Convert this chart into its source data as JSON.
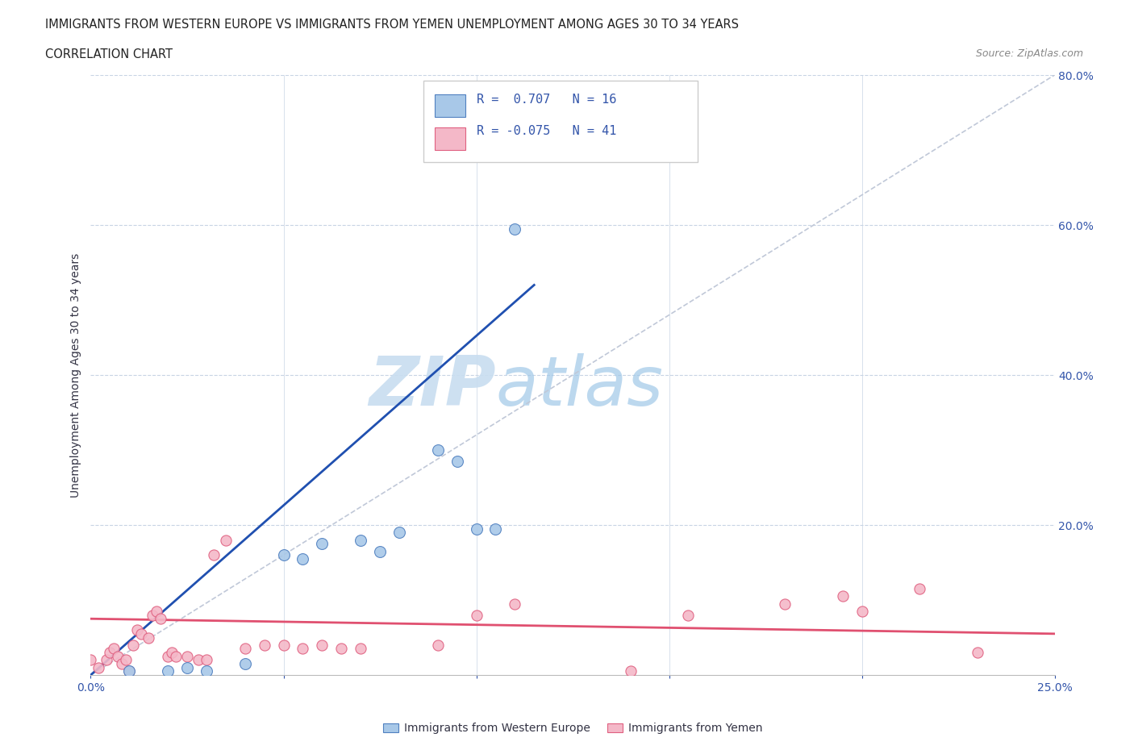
{
  "title_line1": "IMMIGRANTS FROM WESTERN EUROPE VS IMMIGRANTS FROM YEMEN UNEMPLOYMENT AMONG AGES 30 TO 34 YEARS",
  "title_line2": "CORRELATION CHART",
  "source": "Source: ZipAtlas.com",
  "ylabel": "Unemployment Among Ages 30 to 34 years",
  "xlim": [
    0.0,
    0.25
  ],
  "ylim": [
    0.0,
    0.8
  ],
  "xticks": [
    0.0,
    0.05,
    0.1,
    0.15,
    0.2,
    0.25
  ],
  "xtick_labels": [
    "0.0%",
    "",
    "",
    "",
    "",
    "25.0%"
  ],
  "yticks_right": [
    0.0,
    0.2,
    0.4,
    0.6,
    0.8
  ],
  "blue_scatter_x": [
    0.01,
    0.02,
    0.025,
    0.03,
    0.04,
    0.05,
    0.055,
    0.06,
    0.07,
    0.075,
    0.08,
    0.09,
    0.095,
    0.1,
    0.105,
    0.11
  ],
  "blue_scatter_y": [
    0.005,
    0.005,
    0.01,
    0.005,
    0.015,
    0.16,
    0.155,
    0.175,
    0.18,
    0.165,
    0.19,
    0.3,
    0.285,
    0.195,
    0.195,
    0.595
  ],
  "pink_scatter_x": [
    0.0,
    0.002,
    0.004,
    0.005,
    0.006,
    0.007,
    0.008,
    0.009,
    0.01,
    0.011,
    0.012,
    0.013,
    0.015,
    0.016,
    0.017,
    0.018,
    0.02,
    0.021,
    0.022,
    0.025,
    0.028,
    0.03,
    0.032,
    0.035,
    0.04,
    0.045,
    0.05,
    0.055,
    0.06,
    0.065,
    0.07,
    0.09,
    0.1,
    0.11,
    0.14,
    0.155,
    0.18,
    0.195,
    0.2,
    0.215,
    0.23
  ],
  "pink_scatter_y": [
    0.02,
    0.01,
    0.02,
    0.03,
    0.035,
    0.025,
    0.015,
    0.02,
    0.005,
    0.04,
    0.06,
    0.055,
    0.05,
    0.08,
    0.085,
    0.075,
    0.025,
    0.03,
    0.025,
    0.025,
    0.02,
    0.02,
    0.16,
    0.18,
    0.035,
    0.04,
    0.04,
    0.035,
    0.04,
    0.035,
    0.035,
    0.04,
    0.08,
    0.095,
    0.005,
    0.08,
    0.095,
    0.105,
    0.085,
    0.115,
    0.03
  ],
  "blue_line_x": [
    0.0,
    0.115
  ],
  "blue_line_y": [
    0.0,
    0.52
  ],
  "pink_line_x": [
    0.0,
    0.25
  ],
  "pink_line_y": [
    0.075,
    0.055
  ],
  "dash_line_x": [
    0.0,
    0.25
  ],
  "dash_line_y": [
    0.0,
    0.8
  ],
  "blue_color": "#a8c8e8",
  "pink_color": "#f4b8c8",
  "blue_edge_color": "#5080c0",
  "pink_edge_color": "#e06080",
  "blue_line_color": "#2050b0",
  "pink_line_color": "#e05070",
  "dash_color": "#c0c8d8",
  "legend_r1": "R =  0.707",
  "legend_n1": "N = 16",
  "legend_r2": "R = -0.075",
  "legend_n2": "N = 41",
  "label_western": "Immigrants from Western Europe",
  "label_yemen": "Immigrants from Yemen",
  "watermark_zip": "ZIP",
  "watermark_atlas": "atlas",
  "background_color": "#ffffff",
  "grid_color": "#c8d4e4",
  "title_color": "#222222",
  "axis_label_color": "#3355aa",
  "text_color_dark": "#333344"
}
